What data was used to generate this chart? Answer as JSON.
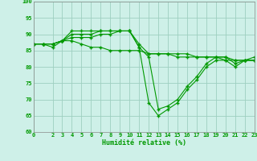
{
  "xlabel": "Humidité relative (%)",
  "xlim": [
    0,
    23
  ],
  "ylim": [
    60,
    100
  ],
  "yticks": [
    60,
    65,
    70,
    75,
    80,
    85,
    90,
    95,
    100
  ],
  "xticks": [
    0,
    2,
    3,
    4,
    5,
    6,
    7,
    8,
    9,
    10,
    11,
    12,
    13,
    14,
    15,
    16,
    17,
    18,
    19,
    20,
    21,
    22,
    23
  ],
  "background_color": "#cef0e8",
  "grid_color": "#9ecfc0",
  "line_color": "#009900",
  "line1": [
    87,
    87,
    86,
    88,
    91,
    91,
    91,
    91,
    91,
    91,
    91,
    86,
    69,
    65,
    67,
    69,
    73,
    76,
    80,
    82,
    82,
    80,
    82,
    82
  ],
  "line2": [
    87,
    87,
    87,
    88,
    90,
    90,
    90,
    91,
    91,
    91,
    91,
    86,
    83,
    67,
    68,
    70,
    74,
    77,
    81,
    83,
    83,
    81,
    82,
    83
  ],
  "line3": [
    87,
    87,
    87,
    88,
    89,
    89,
    89,
    90,
    90,
    91,
    91,
    87,
    84,
    84,
    84,
    83,
    83,
    83,
    83,
    83,
    82,
    82,
    82,
    82
  ],
  "line4": [
    87,
    87,
    87,
    88,
    88,
    87,
    86,
    86,
    85,
    85,
    85,
    85,
    84,
    84,
    84,
    84,
    84,
    83,
    83,
    83,
    83,
    82,
    82,
    82
  ]
}
